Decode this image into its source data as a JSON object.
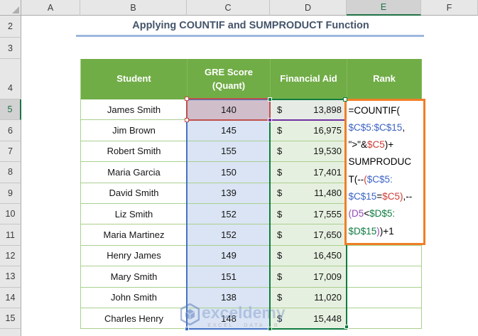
{
  "grid": {
    "columns": [
      "A",
      "B",
      "C",
      "D",
      "E",
      "F"
    ],
    "selected_column": "E",
    "rows": [
      "2",
      "3",
      "4",
      "5",
      "6",
      "7",
      "8",
      "9",
      "10",
      "11",
      "12",
      "13",
      "14",
      "15"
    ],
    "selected_row": "5"
  },
  "title": {
    "text": "Applying COUNTIF and SUMPRODUCT Function"
  },
  "table": {
    "headers": [
      "Student",
      "GRE Score\n(Quant)",
      "Financial Aid",
      "Rank"
    ],
    "currency_symbol": "$",
    "rows": [
      {
        "student": "James Smith",
        "gre": "140",
        "aid": "13,898"
      },
      {
        "student": "Jim Brown",
        "gre": "145",
        "aid": "16,975"
      },
      {
        "student": "Robert Smith",
        "gre": "155",
        "aid": "19,530"
      },
      {
        "student": "Maria Garcia",
        "gre": "150",
        "aid": "17,401"
      },
      {
        "student": "David Smith",
        "gre": "139",
        "aid": "11,480"
      },
      {
        "student": "Liz Smith",
        "gre": "152",
        "aid": "17,555"
      },
      {
        "student": "Maria Martinez",
        "gre": "152",
        "aid": "17,650"
      },
      {
        "student": "Henry James",
        "gre": "149",
        "aid": "16,450"
      },
      {
        "student": "Mary Smith",
        "gre": "151",
        "aid": "17,009"
      },
      {
        "student": "John Smith",
        "gre": "138",
        "aid": "11,020"
      },
      {
        "student": "Charles Henry",
        "gre": "148",
        "aid": "15,448"
      }
    ]
  },
  "formula": {
    "cell": "E5",
    "full_text": "=COUNTIF($C$5:$C$15,\">\"&$C5)+SUMPRODUCT(--($C$5:$C$15=$C5),--(D5<$D$5:$D$15))+1",
    "lines": [
      [
        {
          "t": "=COUNTIF(",
          "c": "fk"
        }
      ],
      [
        {
          "t": "$C$5:$C$15",
          "c": "fb"
        },
        {
          "t": ",",
          "c": "fk"
        }
      ],
      [
        {
          "t": "\">\"&",
          "c": "fk"
        },
        {
          "t": "$C5",
          "c": "fr"
        },
        {
          "t": ")+",
          "c": "fk"
        }
      ],
      [
        {
          "t": "SUMPRODUC",
          "c": "fk"
        }
      ],
      [
        {
          "t": "T(--",
          "c": "fk"
        },
        {
          "t": "(",
          "c": "fr"
        },
        {
          "t": "$C$5:",
          "c": "fb"
        }
      ],
      [
        {
          "t": "$C$15",
          "c": "fb"
        },
        {
          "t": "=",
          "c": "fk"
        },
        {
          "t": "$C5)",
          "c": "fr"
        },
        {
          "t": ",--",
          "c": "fk"
        }
      ],
      [
        {
          "t": "(D5",
          "c": "fp"
        },
        {
          "t": "<",
          "c": "fk"
        },
        {
          "t": "$D$5:",
          "c": "fg"
        }
      ],
      [
        {
          "t": "$D$15",
          "c": "fg"
        },
        {
          "t": ")",
          "c": "fp"
        },
        {
          "t": ")+1",
          "c": "fk"
        }
      ]
    ]
  },
  "watermark": {
    "brand": "exceldemy",
    "tagline": "EXCEL · DATA · B"
  },
  "colors": {
    "table_header_green": "#71AD47",
    "ref_blue": "#4472C4",
    "ref_red": "#C0504D",
    "ref_purple": "#7030A0",
    "ref_green": "#107C41",
    "edit_border_orange": "#F07E26",
    "title_text": "#44546A",
    "title_underline": "#9CB7DE",
    "selected_header_green": "#1E7145"
  }
}
